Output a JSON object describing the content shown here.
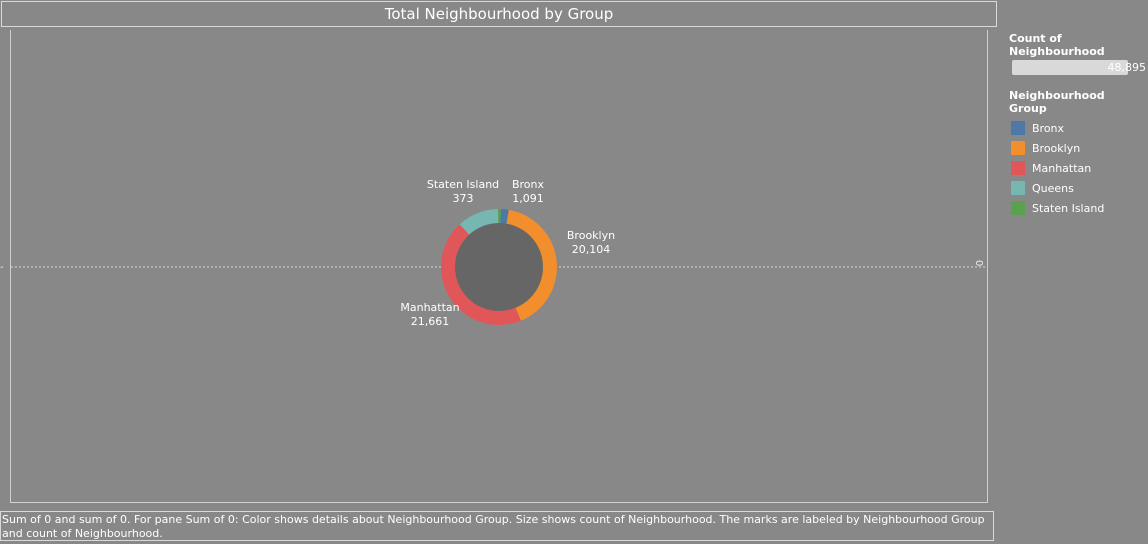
{
  "chart_data": {
    "type": "pie",
    "title": "Total Neighbourhood by Group",
    "categories": [
      "Bronx",
      "Brooklyn",
      "Manhattan",
      "Queens",
      "Staten Island"
    ],
    "values": [
      1091,
      20104,
      21661,
      5666,
      373
    ],
    "slices": [
      {
        "label": "Bronx",
        "value": 1091,
        "value_text": "1,091",
        "color": "#4e79a7"
      },
      {
        "label": "Brooklyn",
        "value": 20104,
        "value_text": "20,104",
        "color": "#f28e2b"
      },
      {
        "label": "Manhattan",
        "value": 21661,
        "value_text": "21,661",
        "color": "#e15759"
      },
      {
        "label": "Queens",
        "value": 5666,
        "value_text": "",
        "color": "#76b7b2"
      },
      {
        "label": "Staten Island",
        "value": 373,
        "value_text": "373",
        "color": "#59a14f"
      }
    ],
    "center_color": "#666666",
    "axis_zero_label": "0",
    "legend_placement": "right"
  },
  "legend": {
    "size_title": "Count of Neighbourhood",
    "size_value": "48,895",
    "color_title": "Neighbourhood Group",
    "items": [
      {
        "label": "Bronx",
        "color": "#4e79a7"
      },
      {
        "label": "Brooklyn",
        "color": "#f28e2b"
      },
      {
        "label": "Manhattan",
        "color": "#e15759"
      },
      {
        "label": "Queens",
        "color": "#76b7b2"
      },
      {
        "label": "Staten Island",
        "color": "#59a14f"
      }
    ]
  },
  "caption": "Sum of 0 and sum of 0.  For pane Sum of 0:  Color shows details about Neighbourhood Group.  Size shows count of Neighbourhood.  The marks are labeled by Neighbourhood Group and count of Neighbourhood."
}
